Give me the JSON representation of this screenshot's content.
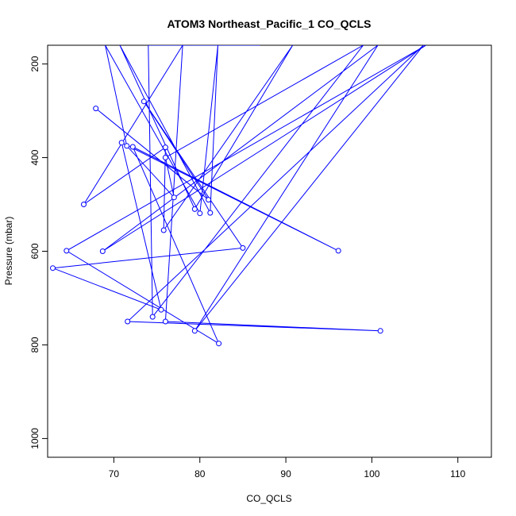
{
  "chart_data": {
    "type": "line",
    "title": "ATOM3 Northeast_Pacific_1 CO_QCLS",
    "xlabel": "CO_QCLS",
    "ylabel": "Pressure (mbar)",
    "xlim": [
      62.3,
      113.9
    ],
    "ylim": [
      1040,
      160
    ],
    "y_reversed": true,
    "x_ticks": [
      70,
      80,
      90,
      100,
      110
    ],
    "y_ticks": [
      200,
      400,
      600,
      800,
      1000
    ],
    "line_color": "#0000ff",
    "marker": "open-circle",
    "grid": false,
    "legend": "none",
    "series": [
      {
        "x": [
          67.9,
          81.0,
          73.5,
          85.0,
          62.9,
          75.5,
          70.9,
          96.1,
          72.2,
          82.2,
          64.5,
          106.3,
          68.7,
          100.7,
          79.4,
          106.0,
          71.6,
          101.0,
          76.0,
          78.0,
          66.5,
          76.0,
          75.8,
          90.8,
          79.4,
          70.7,
          81.2,
          82.1,
          80.0,
          69.0,
          71.5,
          77.0,
          76.0,
          99.0,
          74.5,
          74.0,
          87.0
        ],
        "y": [
          295,
          490,
          280,
          593,
          636,
          725,
          368,
          599,
          377,
          797,
          599,
          160,
          600,
          160,
          770,
          160,
          750,
          770,
          750,
          160,
          500,
          378,
          555,
          160,
          510,
          160,
          518,
          160,
          519,
          160,
          375,
          485,
          400,
          160,
          740,
          160,
          160
        ]
      }
    ]
  }
}
